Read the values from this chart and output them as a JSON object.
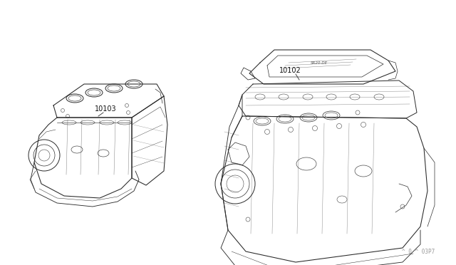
{
  "bg_color": "#ffffff",
  "line_color": "#2a2a2a",
  "label_color": "#111111",
  "watermark_color": "#999999",
  "label_10103": "10103",
  "label_10102": "10102",
  "watermark": "^ 0 ^ 03P7",
  "fig_width": 6.4,
  "fig_height": 3.72,
  "dpi": 100
}
